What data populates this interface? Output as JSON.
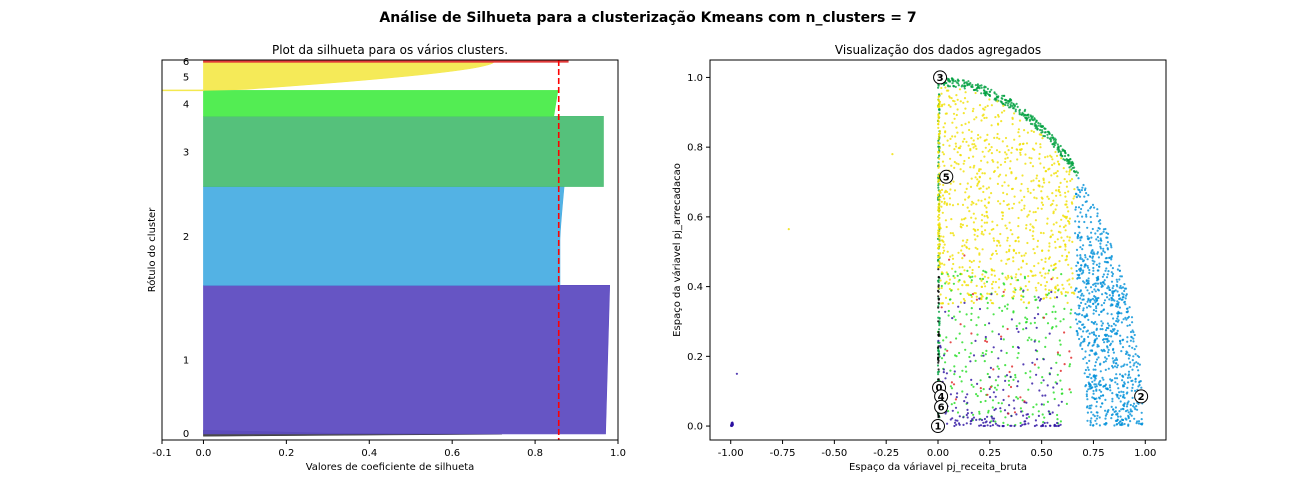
{
  "suptitle": "Análise de Silhueta para a clusterização Kmeans com n_clusters = 7",
  "chart_data": [
    {
      "type": "area",
      "title": "Plot da silhueta para os vários clusters.",
      "xlabel": "Valores de coeficiente de silhueta",
      "ylabel": "Rótulo do cluster",
      "xlim": [
        -0.1,
        1.0
      ],
      "xticks": [
        "-0.1",
        "0.0",
        "0.2",
        "0.4",
        "0.6",
        "0.8",
        "1.0"
      ],
      "yticks_hidden": true,
      "average_silhouette_score": 0.857,
      "grid": false,
      "clusters": [
        {
          "label": "0",
          "color": "#404040",
          "y_range": [
            0.01,
            0.026
          ],
          "max_width": 0.72,
          "min_width": 0.0
        },
        {
          "label": "1",
          "color": "#5e4cc1",
          "y_range": [
            0.016,
            0.407
          ],
          "max_width": 0.98,
          "min_width": 0.97
        },
        {
          "label": "2",
          "color": "#4aaee3",
          "y_range": [
            0.407,
            0.667
          ],
          "max_width": 0.87,
          "min_width": 0.0
        },
        {
          "label": "3",
          "color": "#4cbe74",
          "y_range": [
            0.667,
            0.852
          ],
          "max_width": 0.965,
          "min_width": 0.965
        },
        {
          "label": "4",
          "color": "#4aec4a",
          "y_range": [
            0.852,
            0.92
          ],
          "max_width": 0.855,
          "min_width": 0.845
        },
        {
          "label": "5",
          "color": "#f4e94f",
          "y_range": [
            0.92,
            0.994
          ],
          "max_width": 0.7,
          "min_width": -0.1
        },
        {
          "label": "6",
          "color": "#e13030",
          "y_range": [
            0.994,
            1.0
          ],
          "max_width": 0.88,
          "min_width": 0.88
        }
      ]
    },
    {
      "type": "scatter",
      "title": "Visualização dos dados agregados",
      "xlabel": "Espaço da váriavel pj_receita_bruta",
      "ylabel": "Espaço da váriavel pj_arrecadacao",
      "xlim": [
        -1.1,
        1.1
      ],
      "ylim": [
        -0.04,
        1.05
      ],
      "xticks": [
        "-1.00",
        "-0.75",
        "-0.50",
        "-0.25",
        "0.00",
        "0.25",
        "0.50",
        "0.75",
        "1.00"
      ],
      "yticks": [
        "0.0",
        "0.2",
        "0.4",
        "0.6",
        "0.8",
        "1.0"
      ],
      "grid": false,
      "series": [
        {
          "cluster": "0",
          "color": "#000000"
        },
        {
          "cluster": "1",
          "color": "#2a0fa0"
        },
        {
          "cluster": "2",
          "color": "#0090d8"
        },
        {
          "cluster": "3",
          "color": "#00a040"
        },
        {
          "cluster": "4",
          "color": "#22dd22"
        },
        {
          "cluster": "5",
          "color": "#f0e000"
        },
        {
          "cluster": "6",
          "color": "#e02020"
        }
      ],
      "centers": [
        {
          "label": "0",
          "x": 0.005,
          "y": 0.11
        },
        {
          "label": "1",
          "x": 0.0,
          "y": 0.0
        },
        {
          "label": "2",
          "x": 0.98,
          "y": 0.085
        },
        {
          "label": "3",
          "x": 0.01,
          "y": 1.0
        },
        {
          "label": "4",
          "x": 0.015,
          "y": 0.085
        },
        {
          "label": "5",
          "x": 0.04,
          "y": 0.715
        },
        {
          "label": "6",
          "x": 0.015,
          "y": 0.055
        }
      ]
    }
  ]
}
